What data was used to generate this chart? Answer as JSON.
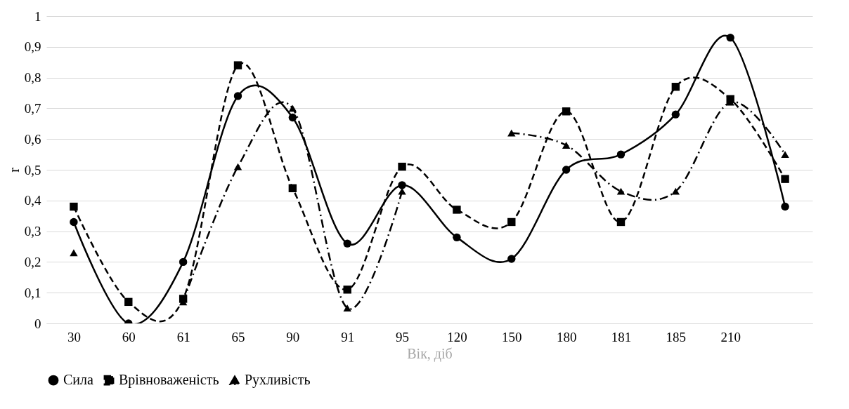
{
  "chart_data": {
    "type": "line",
    "xlabel": "Вік, діб",
    "ylabel": "r",
    "categories": [
      "30",
      "60",
      "61",
      "65",
      "90",
      "91",
      "95",
      "120",
      "150",
      "180",
      "181",
      "185",
      "210",
      null
    ],
    "ylim": [
      0,
      1
    ],
    "yticks": [
      0,
      {
        "value": 0.1,
        "label": "0,1"
      },
      {
        "value": 0.2,
        "label": "0,2"
      },
      {
        "value": 0.3,
        "label": "0,3"
      },
      {
        "value": 0.4,
        "label": "0,4"
      },
      {
        "value": 0.5,
        "label": "0,5"
      },
      {
        "value": 0.6,
        "label": "0,6"
      },
      {
        "value": 0.7,
        "label": "0,7"
      },
      {
        "value": 0.8,
        "label": "0,8"
      },
      {
        "value": 0.9,
        "label": "0,9"
      },
      1
    ],
    "grid": "y",
    "legend": "bottom",
    "series": [
      {
        "name": "Сила",
        "color": "#000000",
        "marker": "circle",
        "line_style": "solid",
        "values": [
          0.33,
          0,
          0.2,
          0.74,
          0.67,
          0.26,
          0.45,
          0.28,
          0.21,
          0.5,
          0.55,
          0.68,
          0.93,
          0.38
        ]
      },
      {
        "name": "Врівноваженість",
        "color": "#000000",
        "marker": "square",
        "line_style": "dashed",
        "values": [
          0.38,
          0.07,
          0.08,
          0.84,
          0.44,
          0.11,
          0.51,
          0.37,
          0.33,
          0.69,
          0.33,
          0.77,
          0.73,
          0.47
        ]
      },
      {
        "name": "Рухливість",
        "color": "#000000",
        "marker": "triangle",
        "line_style": "dashdot",
        "values": [
          0.23,
          null,
          0.07,
          0.51,
          0.7,
          0.05,
          0.43,
          null,
          0.62,
          0.58,
          0.43,
          0.43,
          0.72,
          0.55
        ]
      }
    ]
  }
}
